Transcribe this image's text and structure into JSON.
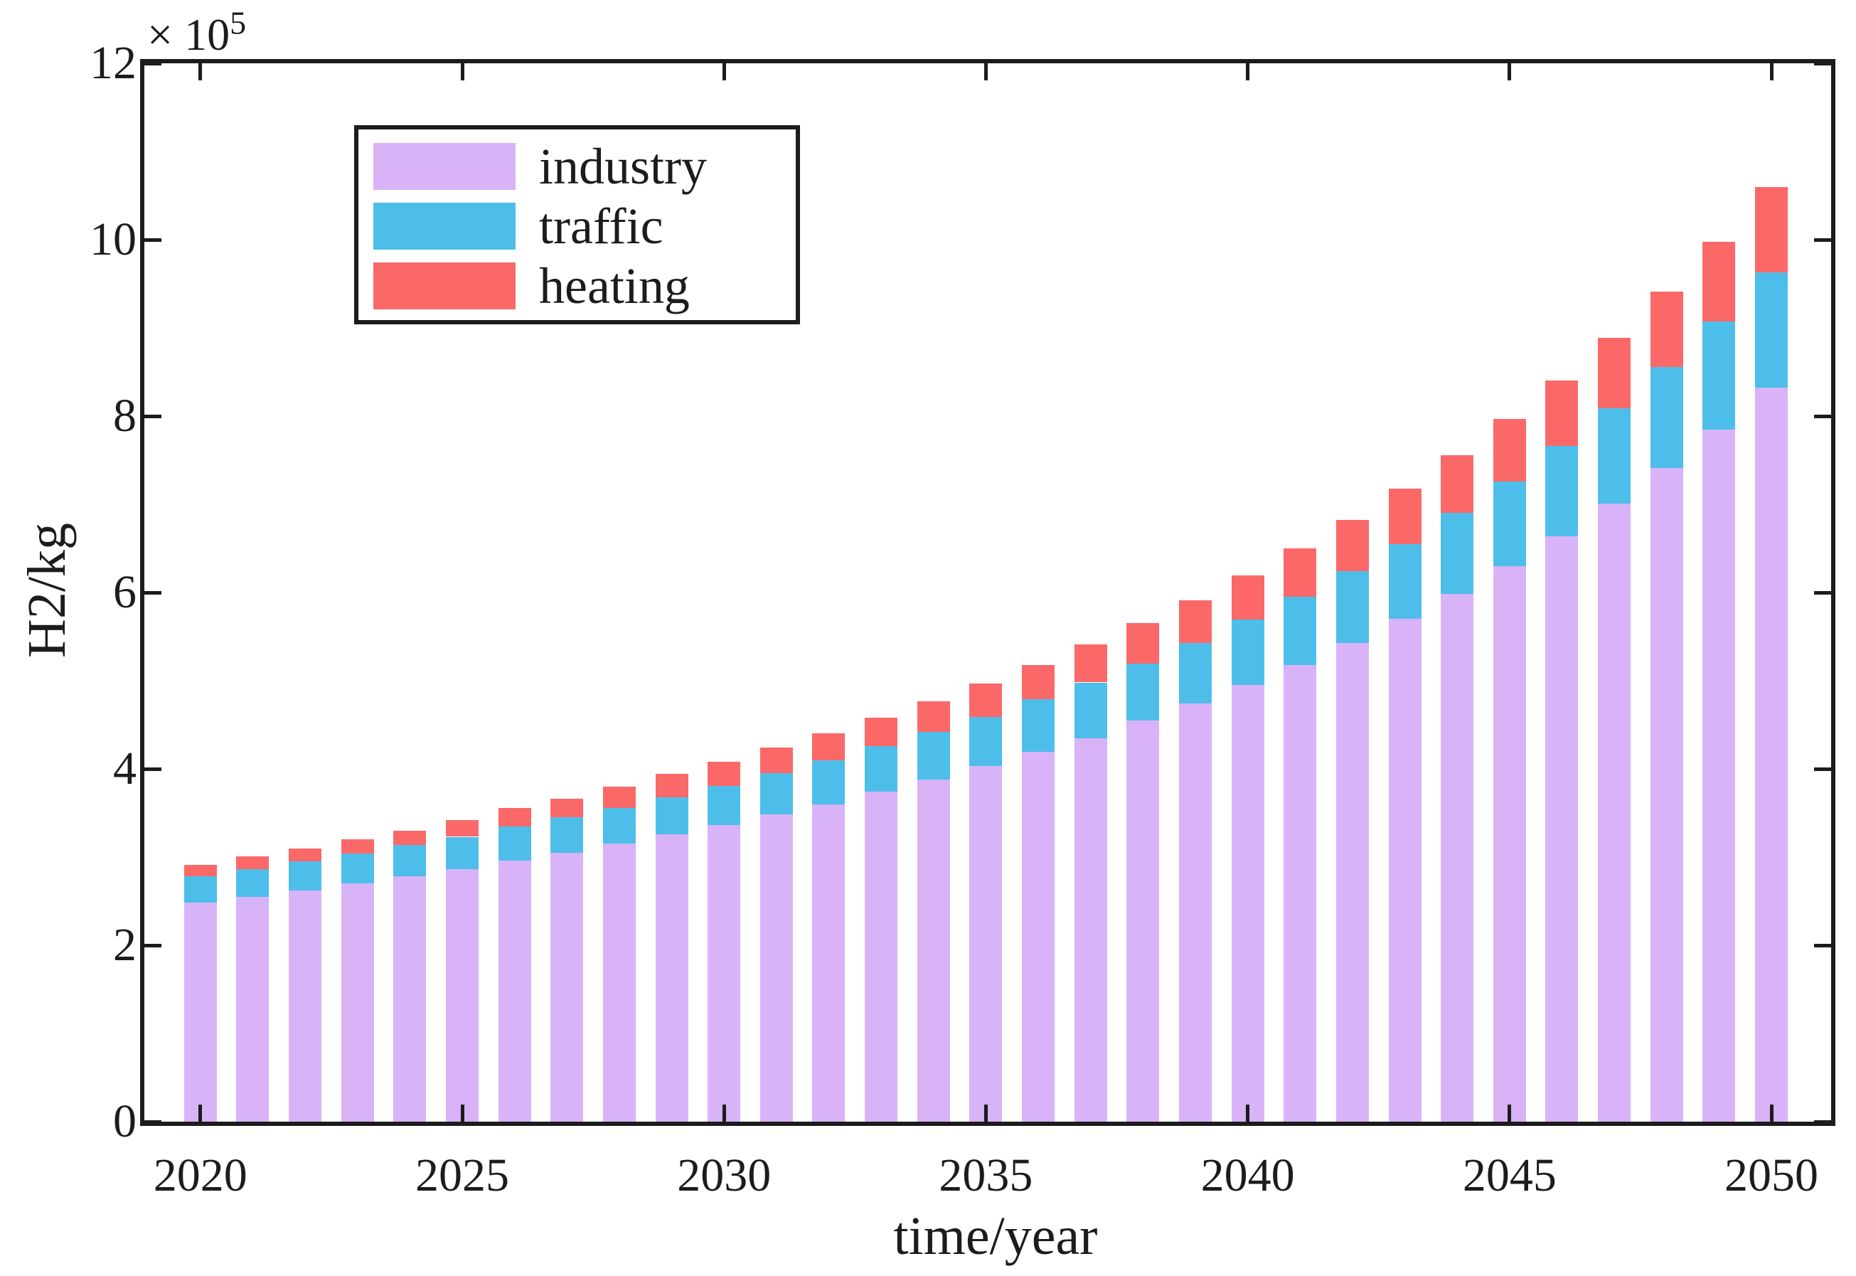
{
  "figure": {
    "xlabel": "time/year",
    "ylabel": "H2/kg",
    "offset": {
      "sign": "×",
      "base": "10",
      "exponent": "5"
    },
    "axes_color": "#1c1c1c",
    "background": "#ffffff"
  },
  "legend": {
    "position": "upper-left",
    "items": [
      {
        "label": "industry",
        "color": "#d8b3f8"
      },
      {
        "label": "traffic",
        "color": "#4dbeea"
      },
      {
        "label": "heating",
        "color": "#fb6868"
      }
    ]
  },
  "chart_data": {
    "type": "bar",
    "stacked": true,
    "title": "",
    "xlabel": "time/year",
    "ylabel": "H2/kg",
    "unit_note": "y values in units of 1e5 kg",
    "categories": [
      2020,
      2021,
      2022,
      2023,
      2024,
      2025,
      2026,
      2027,
      2028,
      2029,
      2030,
      2031,
      2032,
      2033,
      2034,
      2035,
      2036,
      2037,
      2038,
      2039,
      2040,
      2041,
      2042,
      2043,
      2044,
      2045,
      2046,
      2047,
      2048,
      2049,
      2050
    ],
    "series": [
      {
        "name": "industry",
        "color": "#d8b3f8",
        "values": [
          2.48,
          2.55,
          2.62,
          2.7,
          2.78,
          2.86,
          2.96,
          3.05,
          3.15,
          3.26,
          3.36,
          3.48,
          3.6,
          3.74,
          3.88,
          4.03,
          4.19,
          4.35,
          4.55,
          4.74,
          4.95,
          5.18,
          5.43,
          5.7,
          5.98,
          6.3,
          6.64,
          7.01,
          7.41,
          7.85,
          8.32
        ]
      },
      {
        "name": "traffic",
        "color": "#4dbeea",
        "values": [
          0.3,
          0.31,
          0.33,
          0.34,
          0.36,
          0.37,
          0.39,
          0.4,
          0.41,
          0.42,
          0.45,
          0.47,
          0.5,
          0.52,
          0.54,
          0.56,
          0.6,
          0.63,
          0.64,
          0.69,
          0.74,
          0.77,
          0.81,
          0.85,
          0.92,
          0.96,
          1.02,
          1.08,
          1.15,
          1.22,
          1.31
        ]
      },
      {
        "name": "heating",
        "color": "#fb6868",
        "values": [
          0.13,
          0.15,
          0.15,
          0.16,
          0.16,
          0.19,
          0.21,
          0.21,
          0.24,
          0.26,
          0.27,
          0.29,
          0.3,
          0.32,
          0.35,
          0.38,
          0.39,
          0.43,
          0.46,
          0.48,
          0.5,
          0.55,
          0.58,
          0.63,
          0.66,
          0.71,
          0.74,
          0.8,
          0.85,
          0.91,
          0.97
        ]
      }
    ],
    "ylim": [
      0,
      12
    ],
    "yticks": [
      0,
      2,
      4,
      6,
      8,
      10,
      12
    ],
    "xticks": [
      2020,
      2025,
      2030,
      2035,
      2040,
      2045,
      2050
    ],
    "xlim": [
      2018.93,
      2051.14
    ],
    "bar_width_years": 0.625,
    "grid": false,
    "legend_position": "upper-left"
  }
}
